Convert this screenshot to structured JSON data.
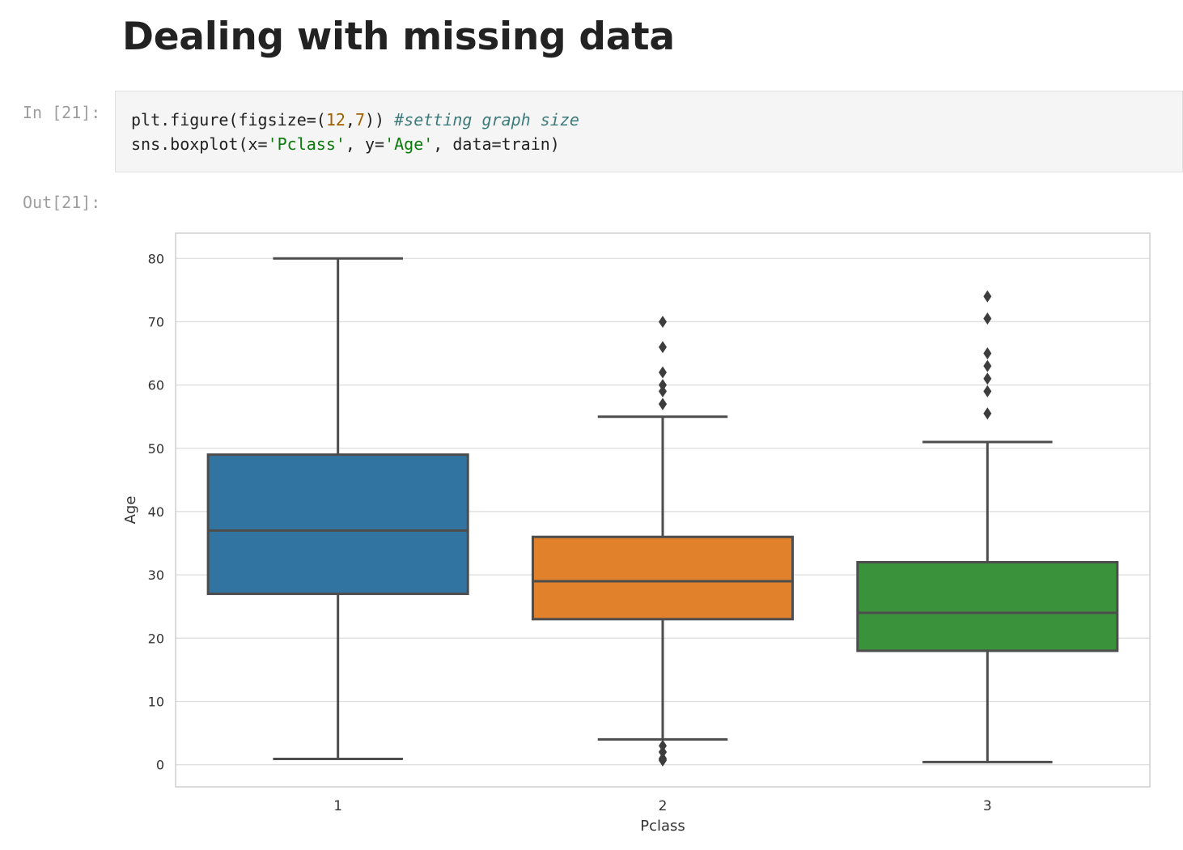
{
  "notebook": {
    "heading": "Dealing with missing data",
    "in_prompt": "In [21]:",
    "out_prompt": "Out[21]:",
    "code": {
      "line1": {
        "a": "plt.figure(figsize=(",
        "n1": "12",
        "b": ",",
        "n2": "7",
        "c": ")) ",
        "comment": "#setting graph size"
      },
      "line2": {
        "a": "sns.boxplot(x=",
        "s1": "'Pclass'",
        "b": ", y=",
        "s2": "'Age'",
        "c": ", data=train)"
      }
    }
  },
  "chart_data": {
    "type": "box",
    "xlabel": "Pclass",
    "ylabel": "Age",
    "ylim": [
      -3.5,
      84
    ],
    "yticks": [
      0,
      10,
      20,
      30,
      40,
      50,
      60,
      70,
      80
    ],
    "grid": true,
    "categories": [
      "1",
      "2",
      "3"
    ],
    "boxes": [
      {
        "category": "1",
        "color": "#3274a1",
        "whisker_low": 0.92,
        "q1": 27,
        "median": 37,
        "q3": 49,
        "whisker_high": 80,
        "outliers": []
      },
      {
        "category": "2",
        "color": "#e1812c",
        "whisker_low": 4,
        "q1": 23,
        "median": 29,
        "q3": 36,
        "whisker_high": 55,
        "outliers": [
          0.67,
          0.83,
          1,
          2,
          2,
          3,
          57,
          57,
          59,
          60,
          62,
          66,
          70
        ]
      },
      {
        "category": "3",
        "color": "#3a923a",
        "whisker_low": 0.42,
        "q1": 18,
        "median": 24,
        "q3": 32,
        "whisker_high": 51,
        "outliers": [
          55.5,
          59,
          61,
          63,
          65,
          70.5,
          74
        ]
      }
    ]
  }
}
